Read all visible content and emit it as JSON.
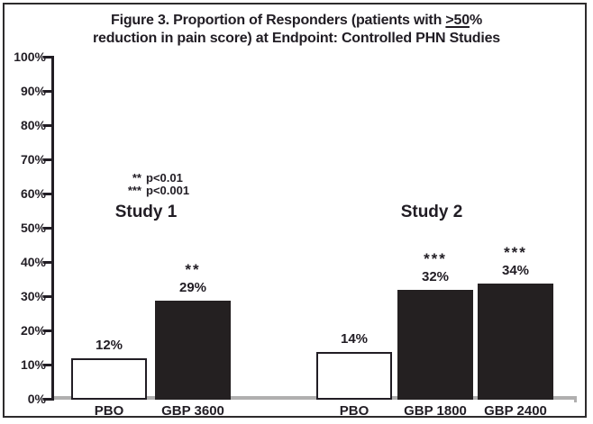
{
  "header": {
    "title_line1_pre": "Figure 3. Proportion of Responders (patients with ",
    "title_line1_geq": ">50",
    "title_line1_pct": "%",
    "title_line2": "reduction in pain score) at Endpoint: Controlled PHN Studies"
  },
  "chart_data": {
    "type": "bar",
    "title": "Figure 3. Proportion of Responders (patients with ≥50% reduction in pain score) at Endpoint: Controlled PHN Studies",
    "unit": "%",
    "ylim": [
      0,
      100
    ],
    "grid": false,
    "y_ticks": [
      {
        "value": 100,
        "label": "100%"
      },
      {
        "value": 90,
        "label": "90%"
      },
      {
        "value": 80,
        "label": "80%"
      },
      {
        "value": 70,
        "label": "70%"
      },
      {
        "value": 60,
        "label": "60%"
      },
      {
        "value": 50,
        "label": "50%"
      },
      {
        "value": 40,
        "label": "40%"
      },
      {
        "value": 30,
        "label": "30%"
      },
      {
        "value": 20,
        "label": "20%"
      },
      {
        "value": 10,
        "label": "10%"
      },
      {
        "value": 0,
        "label": "0%"
      }
    ],
    "legend": {
      "position": "upper-left-of-plot",
      "items": [
        {
          "symbol": "**",
          "text": "p<0.01"
        },
        {
          "symbol": "***",
          "text": "p<0.001"
        }
      ]
    },
    "groups": [
      {
        "name": "Study 1",
        "bars": [
          {
            "category": "PBO",
            "value": 12,
            "value_label": "12%",
            "significance": "",
            "fill": "white"
          },
          {
            "category": "GBP 3600",
            "value": 29,
            "value_label": "29%",
            "significance": "**",
            "fill": "dark"
          }
        ]
      },
      {
        "name": "Study 2",
        "bars": [
          {
            "category": "PBO",
            "value": 14,
            "value_label": "14%",
            "significance": "",
            "fill": "white"
          },
          {
            "category": "GBP 1800",
            "value": 32,
            "value_label": "32%",
            "significance": "***",
            "fill": "dark"
          },
          {
            "category": "GBP 2400",
            "value": 34,
            "value_label": "34%",
            "significance": "***",
            "fill": "dark"
          }
        ]
      }
    ],
    "colors": {
      "bar_dark": "#242021",
      "bar_white": "#ffffff",
      "baseline": "#b0afaf",
      "axis": "#211d24",
      "text": "#211d24"
    }
  }
}
